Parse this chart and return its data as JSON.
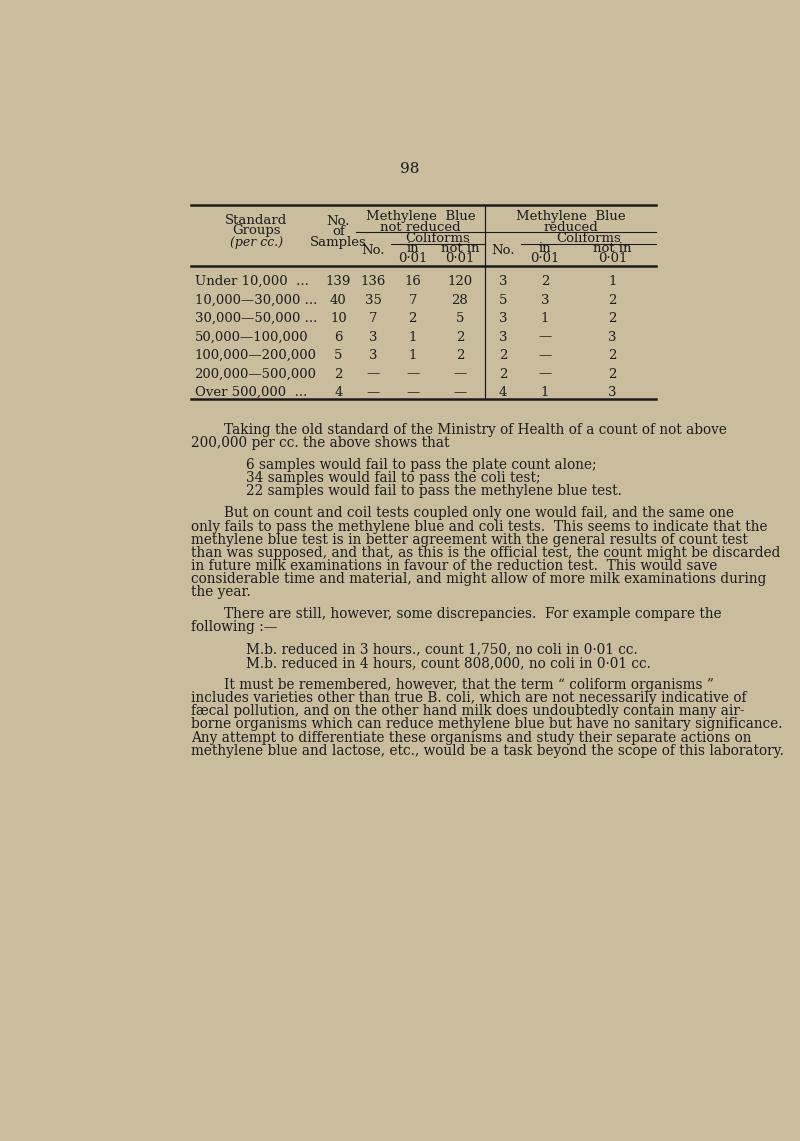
{
  "background_color": "#c9bd9e",
  "page_number": "98",
  "table": {
    "rows": [
      [
        "Under 10,000  ...",
        "139",
        "136",
        "16",
        "120",
        "3",
        "2",
        "1"
      ],
      [
        "10,000—30,000 ...",
        "40",
        "35",
        "7",
        "28",
        "5",
        "3",
        "2"
      ],
      [
        "30,000—50,000 ...",
        "10",
        "7",
        "2",
        "5",
        "3",
        "1",
        "2"
      ],
      [
        "50,000—100,000",
        "6",
        "3",
        "1",
        "2",
        "3",
        "—",
        "3"
      ],
      [
        "100,000—200,000",
        "5",
        "3",
        "1",
        "2",
        "2",
        "—",
        "2"
      ],
      [
        "200,000—500,000",
        "2",
        "—",
        "—",
        "—",
        "2",
        "—",
        "2"
      ],
      [
        "Over 500,000  ...",
        "4",
        "—",
        "—",
        "—",
        "4",
        "1",
        "3"
      ]
    ]
  },
  "text_color": "#1c1c1c",
  "font_size_body": 9.8,
  "font_size_table": 9.5,
  "font_size_page_num": 11,
  "para1_lines": [
    "Taking the old standard of the Ministry of Health of a count of not above",
    "200,000 per cc. the above shows that"
  ],
  "para1_indent": [
    true,
    false
  ],
  "bullet_lines": [
    "6 samples would fail to pass the plate count alone;",
    "34 samples would fail to pass the coli test;",
    "22 samples would fail to pass the methylene blue test."
  ],
  "para3_lines": [
    "But on count and coil tests coupled only one would fail, and the same one",
    "only fails to pass the methylene blue and coli tests.  This seems to indicate that the",
    "methylene blue test is in better agreement with the general results of count test",
    "than was supposed, and that, as this is the official test, the count might be discarded",
    "in future milk examinations in favour of the reduction test.  This would save",
    "considerable time and material, and might allow of more milk examinations during",
    "the year."
  ],
  "para3_indent": [
    true,
    false,
    false,
    false,
    false,
    false,
    false
  ],
  "para4_lines": [
    "There are still, however, some discrepancies.  For example compare the",
    "following :—"
  ],
  "para4_indent": [
    true,
    false
  ],
  "mb_lines": [
    "M.b. reduced in 3 hours., count 1,750, no coli in 0·01 cc.",
    "M.b. reduced in 4 hours, count 808,000, no coli in 0·01 cc."
  ],
  "para5_lines": [
    "It must be remembered, however, that the term “ coliform organisms ”",
    "includes varieties other than true B. coli, which are not necessarily indicative of",
    "fæcal pollution, and on the other hand milk does undoubtedly contain many air-",
    "borne organisms which can reduce methylene blue but have no sanitary significance.",
    "Any attempt to differentiate these organisms and study their separate actions on",
    "methylene blue and lactose, etc., would be a task beyond the scope of this laboratory."
  ],
  "para5_indent": [
    true,
    false,
    false,
    false,
    false,
    false
  ]
}
